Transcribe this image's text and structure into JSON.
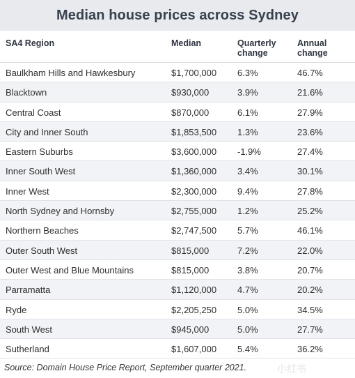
{
  "title": "Median house prices across Sydney",
  "table": {
    "headers": {
      "region": "SA4 Region",
      "median": "Median",
      "quarterly_line1": "Quarterly",
      "quarterly_line2": "change",
      "annual_line1": "Annual",
      "annual_line2": "change"
    },
    "rows": [
      {
        "region": "Baulkham Hills and Hawkesbury",
        "median": "$1,700,000",
        "quarterly": "6.3%",
        "annual": "46.7%"
      },
      {
        "region": "Blacktown",
        "median": "$930,000",
        "quarterly": "3.9%",
        "annual": "21.6%"
      },
      {
        "region": "Central Coast",
        "median": "$870,000",
        "quarterly": "6.1%",
        "annual": "27.9%"
      },
      {
        "region": "City and Inner South",
        "median": "$1,853,500",
        "quarterly": "1.3%",
        "annual": "23.6%"
      },
      {
        "region": "Eastern Suburbs",
        "median": "$3,600,000",
        "quarterly": "-1.9%",
        "annual": "27.4%"
      },
      {
        "region": "Inner South West",
        "median": "$1,360,000",
        "quarterly": "3.4%",
        "annual": "30.1%"
      },
      {
        "region": "Inner West",
        "median": "$2,300,000",
        "quarterly": "9.4%",
        "annual": "27.8%"
      },
      {
        "region": "North Sydney and Hornsby",
        "median": "$2,755,000",
        "quarterly": "1.2%",
        "annual": "25.2%"
      },
      {
        "region": "Northern Beaches",
        "median": "$2,747,500",
        "quarterly": "5.7%",
        "annual": "46.1%"
      },
      {
        "region": "Outer South West",
        "median": "$815,000",
        "quarterly": "7.2%",
        "annual": "22.0%"
      },
      {
        "region": "Outer West and Blue Mountains",
        "median": "$815,000",
        "quarterly": "3.8%",
        "annual": "20.7%"
      },
      {
        "region": "Parramatta",
        "median": "$1,120,000",
        "quarterly": "4.7%",
        "annual": "20.2%"
      },
      {
        "region": "Ryde",
        "median": "$2,205,250",
        "quarterly": "5.0%",
        "annual": "34.5%"
      },
      {
        "region": "South West",
        "median": "$945,000",
        "quarterly": "5.0%",
        "annual": "27.7%"
      },
      {
        "region": "Sutherland",
        "median": "$1,607,000",
        "quarterly": "5.4%",
        "annual": "36.2%"
      }
    ]
  },
  "source": "Source: Domain House Price Report, September quarter 2021.",
  "watermark": "小红书",
  "colors": {
    "title_bg": "#e8eaee",
    "row_alt_bg": "#f2f3f6",
    "title_text": "#38424f"
  }
}
